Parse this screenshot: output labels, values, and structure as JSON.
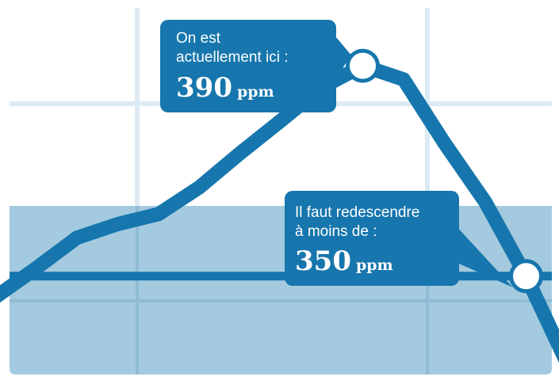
{
  "chart_data": {
    "type": "line",
    "title": "",
    "xlabel": "",
    "ylabel": "",
    "ylim": [
      331,
      401
    ],
    "grid": true,
    "threshold": {
      "value": 350,
      "label": "Il faut redescendre à moins de :",
      "shaded_below": true
    },
    "series": [
      {
        "x": [
          0,
          1,
          2,
          3,
          4,
          5,
          6,
          7,
          8,
          9,
          10,
          11,
          12,
          13,
          14
        ],
        "values": [
          346.0,
          351.5,
          357.3,
          359.9,
          361.8,
          366.9,
          373.4,
          379.6,
          385.9,
          390.0,
          387.4,
          375.3,
          364.1,
          350.0,
          333.5
        ]
      }
    ],
    "annotations": [
      {
        "label": "On est actuellement ici :",
        "value": "390",
        "unit": "ppm",
        "point_index": 9
      },
      {
        "label": "Il faut redescendre à moins de :",
        "value": "350",
        "unit": "ppm",
        "point_index": 13
      }
    ]
  },
  "callouts": {
    "current": {
      "line1": "On est",
      "line2": "actuellement ici :",
      "value": "390",
      "unit": "ppm"
    },
    "target": {
      "line1": "Il faut redescendre",
      "line2": "à moins de :",
      "value": "350",
      "unit": "ppm"
    }
  },
  "colors": {
    "line": "#1676ad",
    "safe_zone": "#a4cadf",
    "grid": "#dceaf3",
    "callout_bg": "#1676ad",
    "marker_fill": "#ffffff"
  }
}
